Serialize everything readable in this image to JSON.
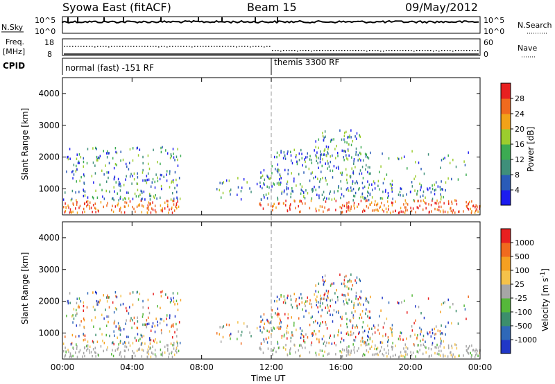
{
  "header": {
    "title": "Syowa East (fitACF)",
    "beam": "Beam 15",
    "date": "09/May/2012"
  },
  "strip": {
    "nsky_label": "N.Sky",
    "nsky_top": "10^5",
    "nsky_bottom": "10^0",
    "nsearch_label": "N.Search",
    "nsearch_top": "10^5",
    "nsearch_bottom": "10^0",
    "freq_label_1": "Freq.",
    "freq_label_2": "[MHz]",
    "freq_top": "18",
    "freq_bottom": "8",
    "nave_label": "Nave",
    "nave_top": "60",
    "nave_bottom": "0",
    "cpid_label": "CPID",
    "cpid_mode_1": "normal (fast) -151 RF",
    "cpid_mode_2": "themis 3300 RF"
  },
  "chart_data": [
    {
      "type": "heatmap",
      "panel": "power",
      "ylabel": "Slant Range [km]",
      "ylim": [
        180,
        4500
      ],
      "y_ticks": [
        1000,
        2000,
        3000,
        4000
      ],
      "x_ticks": [
        "00:00",
        "04:00",
        "08:00",
        "12:00",
        "16:00",
        "20:00",
        "00:00"
      ],
      "colorbar_label": "Power [dB]",
      "colorbar_ticks": [
        "4",
        "8",
        "12",
        "16",
        "20",
        "24",
        "28"
      ],
      "colors": [
        "#1c1cf0",
        "#2a5bb8",
        "#3f8f7a",
        "#3cab52",
        "#9ccd2e",
        "#f2a218",
        "#f06a1e",
        "#e82020"
      ]
    },
    {
      "type": "heatmap",
      "panel": "velocity",
      "ylabel": "Slant Range [km]",
      "ylim": [
        180,
        4500
      ],
      "y_ticks": [
        1000,
        2000,
        3000,
        4000
      ],
      "x_ticks": [
        "00:00",
        "04:00",
        "08:00",
        "12:00",
        "16:00",
        "20:00",
        "00:00"
      ],
      "xlabel": "Time UT",
      "colorbar_label": "Velocity [m s",
      "colorbar_label_sup": "-1",
      "colorbar_label_end": "]",
      "colorbar_ticks": [
        "1000",
        "500",
        "100",
        "25",
        "-25",
        "-100",
        "-500",
        "-1000"
      ],
      "colors": [
        "#2037c8",
        "#2f68b8",
        "#3c8e6c",
        "#55b83a",
        "#a6a6a6",
        "#f5c24a",
        "#f5a021",
        "#f06a1e",
        "#e82020"
      ]
    }
  ]
}
